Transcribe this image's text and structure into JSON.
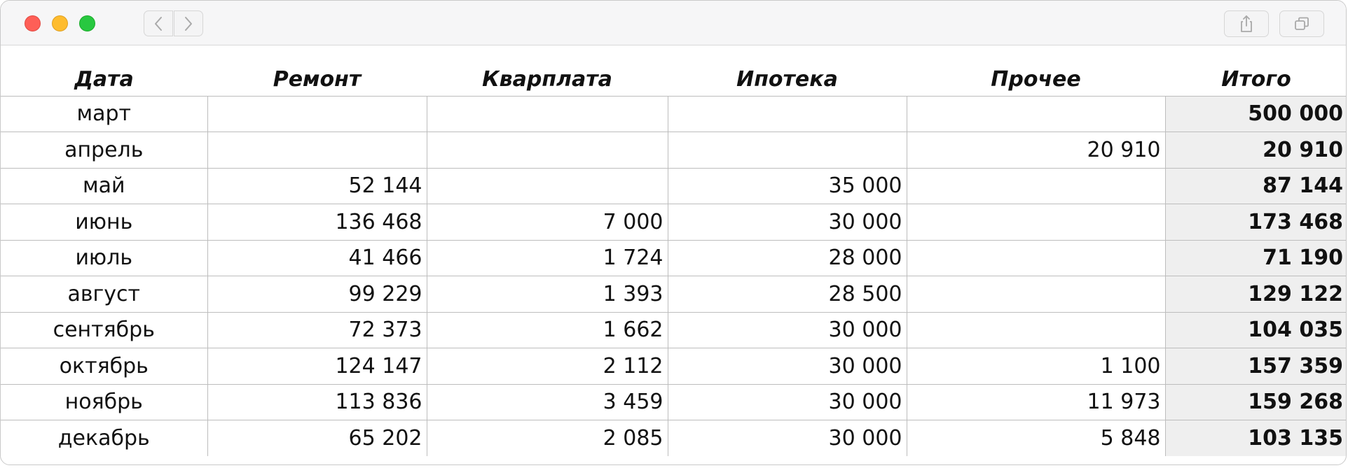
{
  "titlebar": {
    "icons": {
      "back": "chevron-left-icon",
      "forward": "chevron-right-icon",
      "share": "share-icon",
      "tabs": "tabs-icon"
    },
    "colors": {
      "close": "#fe5f57",
      "minimize": "#febc2e",
      "zoom": "#28c840"
    }
  },
  "table": {
    "headers": [
      "Дата",
      "Ремонт",
      "Кварплата",
      "Ипотека",
      "Прочее",
      "Итого"
    ],
    "rows": [
      {
        "date": "март",
        "remont": "",
        "kvarplata": "",
        "ipoteka": "",
        "prochee": "",
        "itogo": "500 000"
      },
      {
        "date": "апрель",
        "remont": "",
        "kvarplata": "",
        "ipoteka": "",
        "prochee": "20 910",
        "itogo": "20 910"
      },
      {
        "date": "май",
        "remont": "52 144",
        "kvarplata": "",
        "ipoteka": "35 000",
        "prochee": "",
        "itogo": "87 144"
      },
      {
        "date": "июнь",
        "remont": "136 468",
        "kvarplata": "7 000",
        "ipoteka": "30 000",
        "prochee": "",
        "itogo": "173 468"
      },
      {
        "date": "июль",
        "remont": "41 466",
        "kvarplata": "1 724",
        "ipoteka": "28 000",
        "prochee": "",
        "itogo": "71 190"
      },
      {
        "date": "август",
        "remont": "99 229",
        "kvarplata": "1 393",
        "ipoteka": "28 500",
        "prochee": "",
        "itogo": "129 122"
      },
      {
        "date": "сентябрь",
        "remont": "72 373",
        "kvarplata": "1 662",
        "ipoteka": "30 000",
        "prochee": "",
        "itogo": "104 035"
      },
      {
        "date": "октябрь",
        "remont": "124 147",
        "kvarplata": "2 112",
        "ipoteka": "30 000",
        "prochee": "1 100",
        "itogo": "157 359"
      },
      {
        "date": "ноябрь",
        "remont": "113 836",
        "kvarplata": "3 459",
        "ipoteka": "30 000",
        "prochee": "11 973",
        "itogo": "159 268"
      },
      {
        "date": "декабрь",
        "remont": "65 202",
        "kvarplata": "2 085",
        "ipoteka": "30 000",
        "prochee": "5 848",
        "itogo": "103 135"
      }
    ],
    "total_column_bg": "#efefef"
  }
}
